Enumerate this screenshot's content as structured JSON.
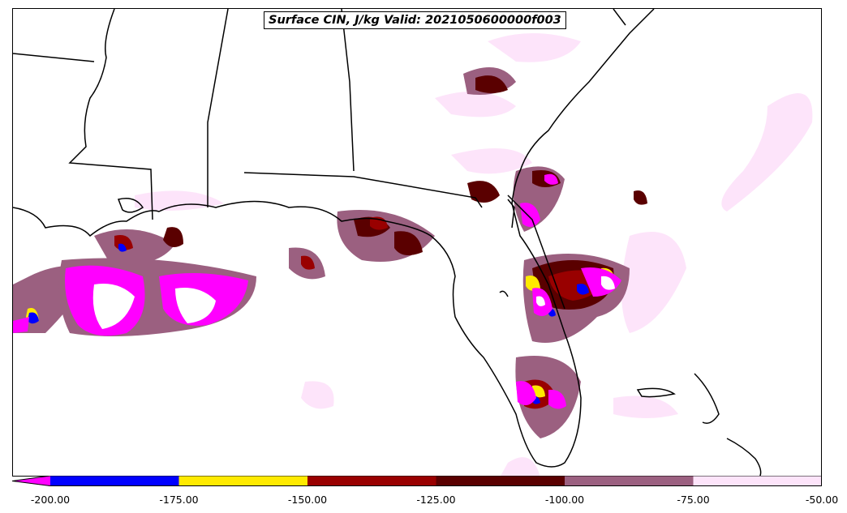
{
  "title": "Surface CIN, J/kg Valid: 2021050600000f003",
  "colorbar": {
    "tick_labels": [
      "-200.00",
      "-175.00",
      "-150.00",
      "-125.00",
      "-100.00",
      "-75.00",
      "-50.00"
    ],
    "bins": [
      {
        "range": [
          -225,
          -200
        ],
        "color": "#ff00ff"
      },
      {
        "range": [
          -200,
          -175
        ],
        "color": "#0000ff"
      },
      {
        "range": [
          -175,
          -150
        ],
        "color": "#ffea00"
      },
      {
        "range": [
          -150,
          -125
        ],
        "color": "#990000"
      },
      {
        "range": [
          -125,
          -100
        ],
        "color": "#5a0000"
      },
      {
        "range": [
          -100,
          -75
        ],
        "color": "#9b6080"
      },
      {
        "range": [
          -75,
          -50
        ],
        "color": "#fde4fa"
      }
    ],
    "extend": "min"
  },
  "map": {
    "region": "Southeastern United States / Gulf of Mexico / Florida",
    "border_color": "#000000"
  }
}
